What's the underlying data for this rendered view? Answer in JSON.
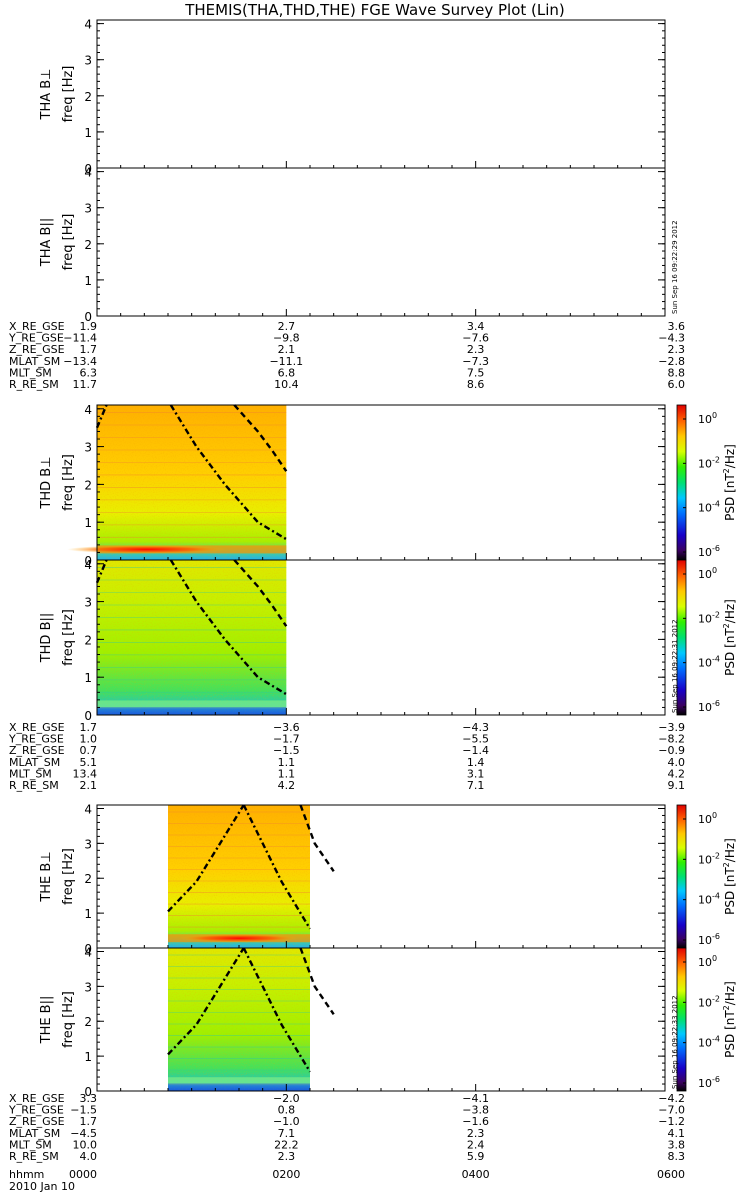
{
  "title": "THEMIS(THA,THD,THE) FGE Wave Survey Plot (Lin)",
  "colorbar": {
    "label_parts": [
      "PSD [nT",
      "2",
      "/Hz]"
    ],
    "ticks": [
      {
        "base": "10",
        "exp": "0"
      },
      {
        "base": "10",
        "exp": "-2"
      },
      {
        "base": "10",
        "exp": "-4"
      },
      {
        "base": "10",
        "exp": "-6"
      }
    ]
  },
  "stamps": {
    "tha": "Sun Sep 16 09:22:29 2012",
    "thd": "Sun Sep 16 09:22:31 2012",
    "the": "Sun Sep 16 09:22:33 2012"
  },
  "ephem_labels": [
    "X_RE_GSE",
    "Y_RE_GSE",
    "Z_RE_GSE",
    "MLAT_SM",
    "MLT_SM",
    "R_RE_SM"
  ],
  "time_axis": {
    "label": "hhmm",
    "date": "2010 Jan 10",
    "ticks": [
      "0000",
      "0200",
      "0400",
      "0600"
    ]
  },
  "chart_data": [
    {
      "type": "heatmap",
      "id": "tha-bperp",
      "ylabel": "THA B⊥",
      "yunit": "freq [Hz]",
      "ylim": [
        0,
        4.1
      ],
      "yticks": [
        "0",
        "1",
        "2",
        "3",
        "4"
      ],
      "xlim": [
        "0000",
        "0600"
      ],
      "data_start": null,
      "data_end": null,
      "colorbar": false
    },
    {
      "type": "heatmap",
      "id": "tha-bpar",
      "ylabel": "THA B||",
      "yunit": "freq [Hz]",
      "ylim": [
        0,
        4.1
      ],
      "yticks": [
        "0",
        "1",
        "2",
        "3",
        "4"
      ],
      "xlim": [
        "0000",
        "0600"
      ],
      "data_start": null,
      "data_end": null,
      "colorbar": false
    },
    {
      "type": "heatmap",
      "id": "thd-bperp",
      "ylabel": "THD B⊥",
      "yunit": "freq [Hz]",
      "ylim": [
        0,
        4.1
      ],
      "yticks": [
        "0",
        "1",
        "2",
        "3",
        "4"
      ],
      "xlim": [
        "0000",
        "0600"
      ],
      "data_start": "0000",
      "data_end": "0200",
      "colorbar": true,
      "colorbar_range": "1e-7 to 1e1 nT^2/Hz"
    },
    {
      "type": "heatmap",
      "id": "thd-bpar",
      "ylabel": "THD B||",
      "yunit": "freq [Hz]",
      "ylim": [
        0,
        4.1
      ],
      "yticks": [
        "0",
        "1",
        "2",
        "3",
        "4"
      ],
      "xlim": [
        "0000",
        "0600"
      ],
      "data_start": "0000",
      "data_end": "0200",
      "colorbar": true,
      "colorbar_range": "1e-7 to 1e1 nT^2/Hz"
    },
    {
      "type": "heatmap",
      "id": "the-bperp",
      "ylabel": "THE B⊥",
      "yunit": "freq [Hz]",
      "ylim": [
        0,
        4.1
      ],
      "yticks": [
        "0",
        "1",
        "2",
        "3",
        "4"
      ],
      "xlim": [
        "0000",
        "0600"
      ],
      "data_start": "0045",
      "data_end": "0215",
      "colorbar": true,
      "colorbar_range": "1e-7 to 1e1 nT^2/Hz"
    },
    {
      "type": "heatmap",
      "id": "the-bpar",
      "ylabel": "THE B||",
      "yunit": "freq [Hz]",
      "ylim": [
        0,
        4.1
      ],
      "yticks": [
        "0",
        "1",
        "2",
        "3",
        "4"
      ],
      "xlim": [
        "0000",
        "0600"
      ],
      "data_start": "0045",
      "data_end": "0215",
      "colorbar": true,
      "colorbar_range": "1e-7 to 1e1 nT^2/Hz"
    },
    {
      "type": "table",
      "id": "ephem-tha",
      "columns": [
        "0000",
        "0200",
        "0400",
        "0600"
      ],
      "rows": [
        [
          "1.9",
          "2.7",
          "3.4",
          "3.6"
        ],
        [
          "−11.4",
          "−9.8",
          "−7.6",
          "−4.3"
        ],
        [
          "1.7",
          "2.1",
          "2.3",
          "2.3"
        ],
        [
          "−13.4",
          "−11.1",
          "−7.3",
          "−2.8"
        ],
        [
          "6.3",
          "6.8",
          "7.5",
          "8.8"
        ],
        [
          "11.7",
          "10.4",
          "8.6",
          "6.0"
        ]
      ]
    },
    {
      "type": "table",
      "id": "ephem-thd",
      "columns": [
        "0000",
        "0200",
        "0400",
        "0600"
      ],
      "rows": [
        [
          "1.7",
          "−3.6",
          "−4.3",
          "−3.9"
        ],
        [
          "1.0",
          "−1.7",
          "−5.5",
          "−8.2"
        ],
        [
          "0.7",
          "−1.5",
          "−1.4",
          "−0.9"
        ],
        [
          "5.1",
          "1.1",
          "1.4",
          "4.0"
        ],
        [
          "13.4",
          "1.1",
          "3.1",
          "4.2"
        ],
        [
          "2.1",
          "4.2",
          "7.1",
          "9.1"
        ]
      ]
    },
    {
      "type": "table",
      "id": "ephem-the",
      "columns": [
        "0000",
        "0200",
        "0400",
        "0600"
      ],
      "rows": [
        [
          "3.3",
          "−2.0",
          "−4.1",
          "−4.2"
        ],
        [
          "−1.5",
          "0.8",
          "−3.8",
          "−7.0"
        ],
        [
          "1.7",
          "−1.0",
          "−1.6",
          "−1.2"
        ],
        [
          "−4.5",
          "7.1",
          "2.3",
          "4.1"
        ],
        [
          "10.0",
          "22.2",
          "2.4",
          "3.8"
        ],
        [
          "4.0",
          "2.3",
          "5.9",
          "8.3"
        ]
      ]
    }
  ]
}
